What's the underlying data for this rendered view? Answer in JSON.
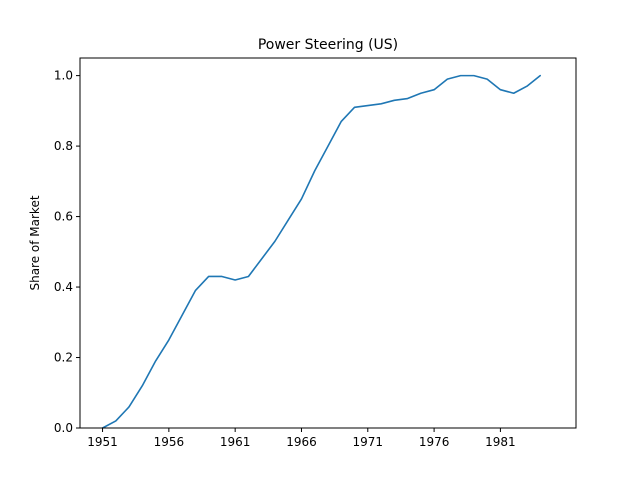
{
  "chart_data": {
    "type": "line",
    "title": "Power Steering (US)",
    "xlabel": "",
    "ylabel": "Share of Market",
    "xlim": [
      1949.3,
      1986.7
    ],
    "ylim": [
      0,
      1.05
    ],
    "xticks": [
      1951,
      1956,
      1961,
      1966,
      1971,
      1976,
      1981
    ],
    "yticks": [
      "0.0",
      "0.2",
      "0.4",
      "0.6",
      "0.8",
      "1.0"
    ],
    "grid": false,
    "series": [
      {
        "color": "#1f77b4",
        "x": [
          1951,
          1952,
          1953,
          1954,
          1955,
          1956,
          1957,
          1958,
          1959,
          1960,
          1961,
          1962,
          1963,
          1964,
          1965,
          1966,
          1967,
          1968,
          1969,
          1970,
          1971,
          1972,
          1973,
          1974,
          1975,
          1976,
          1977,
          1978,
          1979,
          1980,
          1981,
          1982,
          1983,
          1984
        ],
        "y": [
          0.0,
          0.02,
          0.06,
          0.12,
          0.19,
          0.25,
          0.32,
          0.39,
          0.43,
          0.43,
          0.42,
          0.43,
          0.48,
          0.53,
          0.59,
          0.65,
          0.73,
          0.8,
          0.87,
          0.91,
          0.915,
          0.92,
          0.93,
          0.935,
          0.95,
          0.96,
          0.99,
          1.0,
          1.0,
          0.99,
          0.96,
          0.95,
          0.97,
          1.0
        ]
      }
    ]
  }
}
